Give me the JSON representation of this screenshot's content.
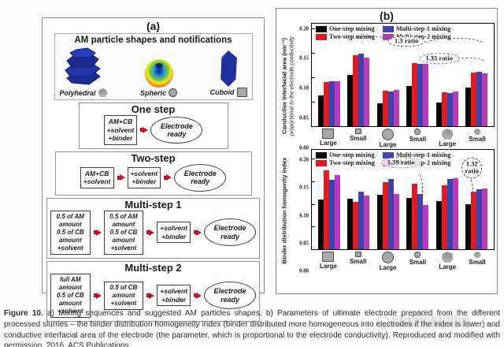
{
  "panel_a": {
    "label": "(a)",
    "shapes_title": "AM particle shapes and notifications",
    "shapes": [
      {
        "name": "Polyhedral",
        "marker": "heptagon"
      },
      {
        "name": "Spheric",
        "marker": "circle"
      },
      {
        "name": "Cuboid",
        "marker": "square"
      }
    ],
    "flows": [
      {
        "title": "One step",
        "width": "w1",
        "steps": [
          [
            "AM+CB",
            "+solvent",
            "+binder"
          ]
        ],
        "result": [
          "Electrode",
          "ready"
        ]
      },
      {
        "title": "Two-step",
        "width": "w2",
        "steps": [
          [
            "AM+CB",
            "+solvent"
          ],
          [
            "+solvent",
            "+binder"
          ]
        ],
        "result": [
          "Electrode",
          "ready"
        ]
      },
      {
        "title": "Multi-step 1",
        "width": "w3",
        "steps": [
          [
            "0.5 of AM amount",
            "0.5 of CB amount",
            "+solvent"
          ],
          [
            "0.5 of AM amount",
            "0.5 of CB amount",
            "+solvent"
          ],
          [
            "+solvent",
            "+binder"
          ]
        ],
        "result": [
          "Electrode",
          "ready"
        ]
      },
      {
        "title": "Multi-step 2",
        "width": "w3",
        "steps": [
          [
            "full AM amount",
            "0.5 of CB amount",
            "+solvent"
          ],
          [
            "0.5 of CB amount",
            "+solvent"
          ],
          [
            "+solvent",
            "+binder"
          ]
        ],
        "result": [
          "Electrode",
          "ready"
        ]
      }
    ]
  },
  "panel_b": {
    "label": "(b)"
  },
  "chart_data": [
    {
      "type": "bar",
      "ylabel_bold": "Conductive interfacial area (nm⁻¹)",
      "ylabel_italic": "proportional to the electrode conductivity",
      "ylim": [
        0,
        0.21
      ],
      "yticks": [
        "0.20",
        "0.15",
        "0.10",
        "0.05",
        "0.00"
      ],
      "grid": false,
      "legend_position": "top-inside",
      "categories": [
        {
          "label": "Large",
          "shape": "square",
          "size": "lg"
        },
        {
          "label": "Small",
          "shape": "square",
          "size": "sm"
        },
        {
          "label": "Large",
          "shape": "circle",
          "size": "lg"
        },
        {
          "label": "Small",
          "shape": "circle",
          "size": "sm"
        },
        {
          "label": "Large",
          "shape": "heptagon",
          "size": "lg"
        },
        {
          "label": "Small",
          "shape": "heptagon",
          "size": "sm"
        }
      ],
      "series": [
        {
          "name": "One-step mixing",
          "color": "#000000",
          "values": [
            0.063,
            0.105,
            0.047,
            0.083,
            0.049,
            0.079
          ]
        },
        {
          "name": "Two-step mixing",
          "color": "#e31a1f",
          "values": [
            0.091,
            0.146,
            0.073,
            0.129,
            0.069,
            0.11
          ]
        },
        {
          "name": "Multi-step-1 mixing",
          "color": "#3a44ae",
          "values": [
            0.092,
            0.148,
            0.071,
            0.128,
            0.068,
            0.112
          ]
        },
        {
          "name": "Multi-step-2 mixing",
          "color": "#bb3abb",
          "values": [
            0.092,
            0.141,
            0.075,
            0.128,
            0.071,
            0.108
          ]
        }
      ],
      "annotations": [
        {
          "text": [
            "1.3 ratio"
          ],
          "style": "",
          "x": 52,
          "y": 17
        },
        {
          "text": [
            "1.35 ratio"
          ],
          "style": "blue",
          "x": 70,
          "y": 34
        }
      ]
    },
    {
      "type": "bar",
      "ylabel_bold": "Binder distribution homogenity index",
      "ylabel_italic": "",
      "ylim": [
        0,
        0.22
      ],
      "yticks": [
        "0.20",
        "0.15",
        "0.10",
        "0.05",
        "0.00"
      ],
      "grid": false,
      "legend_position": "top-inside",
      "categories": [
        {
          "label": "Large",
          "shape": "square",
          "size": "lg"
        },
        {
          "label": "Small",
          "shape": "square",
          "size": "sm"
        },
        {
          "label": "Large",
          "shape": "circle",
          "size": "lg"
        },
        {
          "label": "Small",
          "shape": "circle",
          "size": "sm"
        },
        {
          "label": "Large",
          "shape": "heptagon",
          "size": "lg"
        },
        {
          "label": "Small",
          "shape": "heptagon",
          "size": "sm"
        }
      ],
      "series": [
        {
          "name": "One-step mixing",
          "color": "#000000",
          "values": [
            0.11,
            0.112,
            0.12,
            0.114,
            0.107,
            0.099
          ]
        },
        {
          "name": "Two-step mixing",
          "color": "#e31a1f",
          "values": [
            0.175,
            0.104,
            0.149,
            0.145,
            0.141,
            0.127
          ]
        },
        {
          "name": "Multi-step-1 mixing",
          "color": "#3a44ae",
          "values": [
            0.153,
            0.128,
            0.156,
            0.122,
            0.155,
            0.133
          ]
        },
        {
          "name": "Multi-step-2 mixing",
          "color": "#bb3abb",
          "values": [
            0.165,
            0.119,
            0.122,
            0.097,
            0.157,
            0.135
          ]
        }
      ],
      "annotations": [
        {
          "text": [
            "1.39  ratio"
          ],
          "style": "gray",
          "x": 49,
          "y": 13
        },
        {
          "text": [
            "1.32",
            "ratio"
          ],
          "style": "circle",
          "x": 88,
          "y": 18
        }
      ]
    }
  ],
  "caption": {
    "label": "Figure 10.",
    "text": "a) Mixing sequences and suggested AM particles shapes. b) Parameters of ultimate electrode prepared from the different processed slurries – the binder distribution homogeneity index (binder distributed more homogeneous into electrodes if the index is lower) and conductive interfacial area of the electrode (the parameter, which is proportional to the electrode conductivity). Reproduced and modified with permission. 2016, ACS Publications."
  },
  "colors": {
    "series_black": "#000000",
    "series_red": "#e31a1f",
    "series_blue": "#3a44ae",
    "series_magenta": "#bb3abb",
    "arrow_red": "#c51022",
    "particle_blue": "#20309f",
    "marker_gray": "#a9a9a9"
  }
}
